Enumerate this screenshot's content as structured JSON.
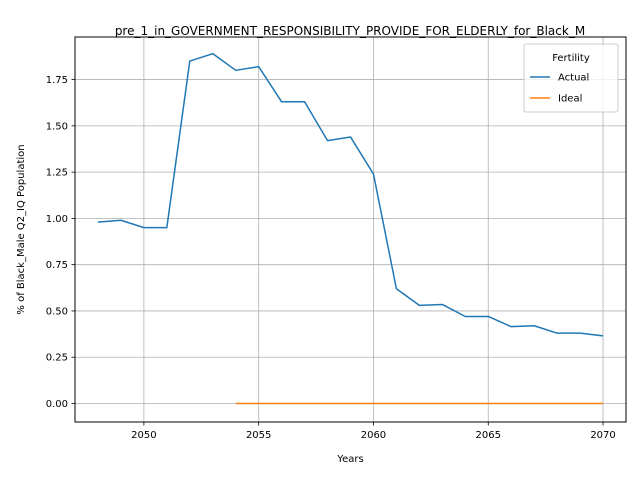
{
  "chart_data": {
    "type": "line",
    "title": "pre_1_in_GOVERNMENT_RESPONSIBILITY_PROVIDE_FOR_ELDERLY_for_Black_M",
    "xlabel": "Years",
    "ylabel": "% of Black_Male Q2_IQ Population",
    "xlim": [
      2047,
      2071
    ],
    "ylim": [
      -0.1,
      1.98
    ],
    "xticks": [
      2050,
      2055,
      2060,
      2065,
      2070
    ],
    "yticks": [
      0.0,
      0.25,
      0.5,
      0.75,
      1.0,
      1.25,
      1.5,
      1.75
    ],
    "ytick_labels": [
      "0.00",
      "0.25",
      "0.50",
      "0.75",
      "1.00",
      "1.25",
      "1.50",
      "1.75"
    ],
    "grid": true,
    "legend": {
      "title": "Fertility",
      "placement": "top-right"
    },
    "series": [
      {
        "name": "Actual",
        "color": "#1f77b4",
        "x": [
          2048,
          2049,
          2050,
          2051,
          2052,
          2053,
          2054,
          2055,
          2056,
          2057,
          2058,
          2059,
          2060,
          2061,
          2062,
          2063,
          2064,
          2065,
          2066,
          2067,
          2068,
          2069,
          2070
        ],
        "y": [
          0.98,
          0.99,
          0.95,
          0.95,
          1.85,
          1.89,
          1.8,
          1.82,
          1.63,
          1.63,
          1.42,
          1.44,
          1.24,
          0.62,
          0.53,
          0.535,
          0.47,
          0.47,
          0.415,
          0.42,
          0.38,
          0.38,
          0.365
        ]
      },
      {
        "name": "Ideal",
        "color": "#ff7f0e",
        "x": [
          2054,
          2055,
          2056,
          2057,
          2058,
          2059,
          2060,
          2061,
          2062,
          2063,
          2064,
          2065,
          2066,
          2067,
          2068,
          2069,
          2070
        ],
        "y": [
          0,
          0,
          0,
          0,
          0,
          0,
          0,
          0,
          0,
          0,
          0,
          0,
          0,
          0,
          0,
          0,
          0
        ]
      }
    ]
  }
}
